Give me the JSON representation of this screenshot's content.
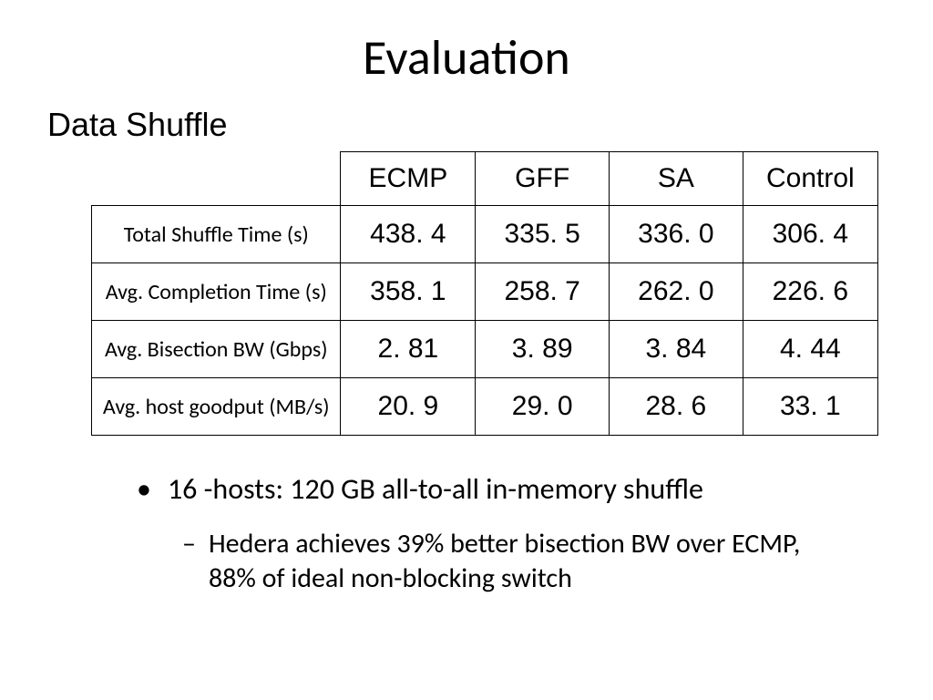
{
  "title": "Evaluation",
  "subtitle": "Data Shuffle",
  "table": {
    "type": "table",
    "columns": [
      "ECMP",
      "GFF",
      "SA",
      "Control"
    ],
    "rows": [
      {
        "label": "Total Shuffle Time (s)",
        "values": [
          "438. 4",
          "335. 5",
          "336. 0",
          "306. 4"
        ]
      },
      {
        "label": "Avg. Completion Time (s)",
        "values": [
          "358. 1",
          "258. 7",
          "262. 0",
          "226. 6"
        ]
      },
      {
        "label": "Avg. Bisection BW (Gbps)",
        "values": [
          "2. 81",
          "3. 89",
          "3. 84",
          "4. 44"
        ]
      },
      {
        "label": "Avg. host goodput (MB/s)",
        "values": [
          "20. 9",
          "29. 0",
          "28. 6",
          "33. 1"
        ]
      }
    ],
    "border_color": "#000000",
    "background_color": "#ffffff",
    "header_fontsize": 30,
    "row_label_fontsize": 24,
    "data_fontsize": 30
  },
  "bullets": {
    "level1_marker": "•",
    "level2_marker": "–",
    "level1_text": "16 -hosts: 120 GB all-to-all in-memory shuffle",
    "level2_text": "Hedera achieves 39% better bisection BW over ECMP,  88% of ideal non-blocking switch"
  },
  "colors": {
    "background": "#ffffff",
    "text": "#000000"
  },
  "fonts": {
    "title_size": 54,
    "subtitle_size": 36,
    "bullet_l1_size": 32,
    "bullet_l2_size": 30
  }
}
